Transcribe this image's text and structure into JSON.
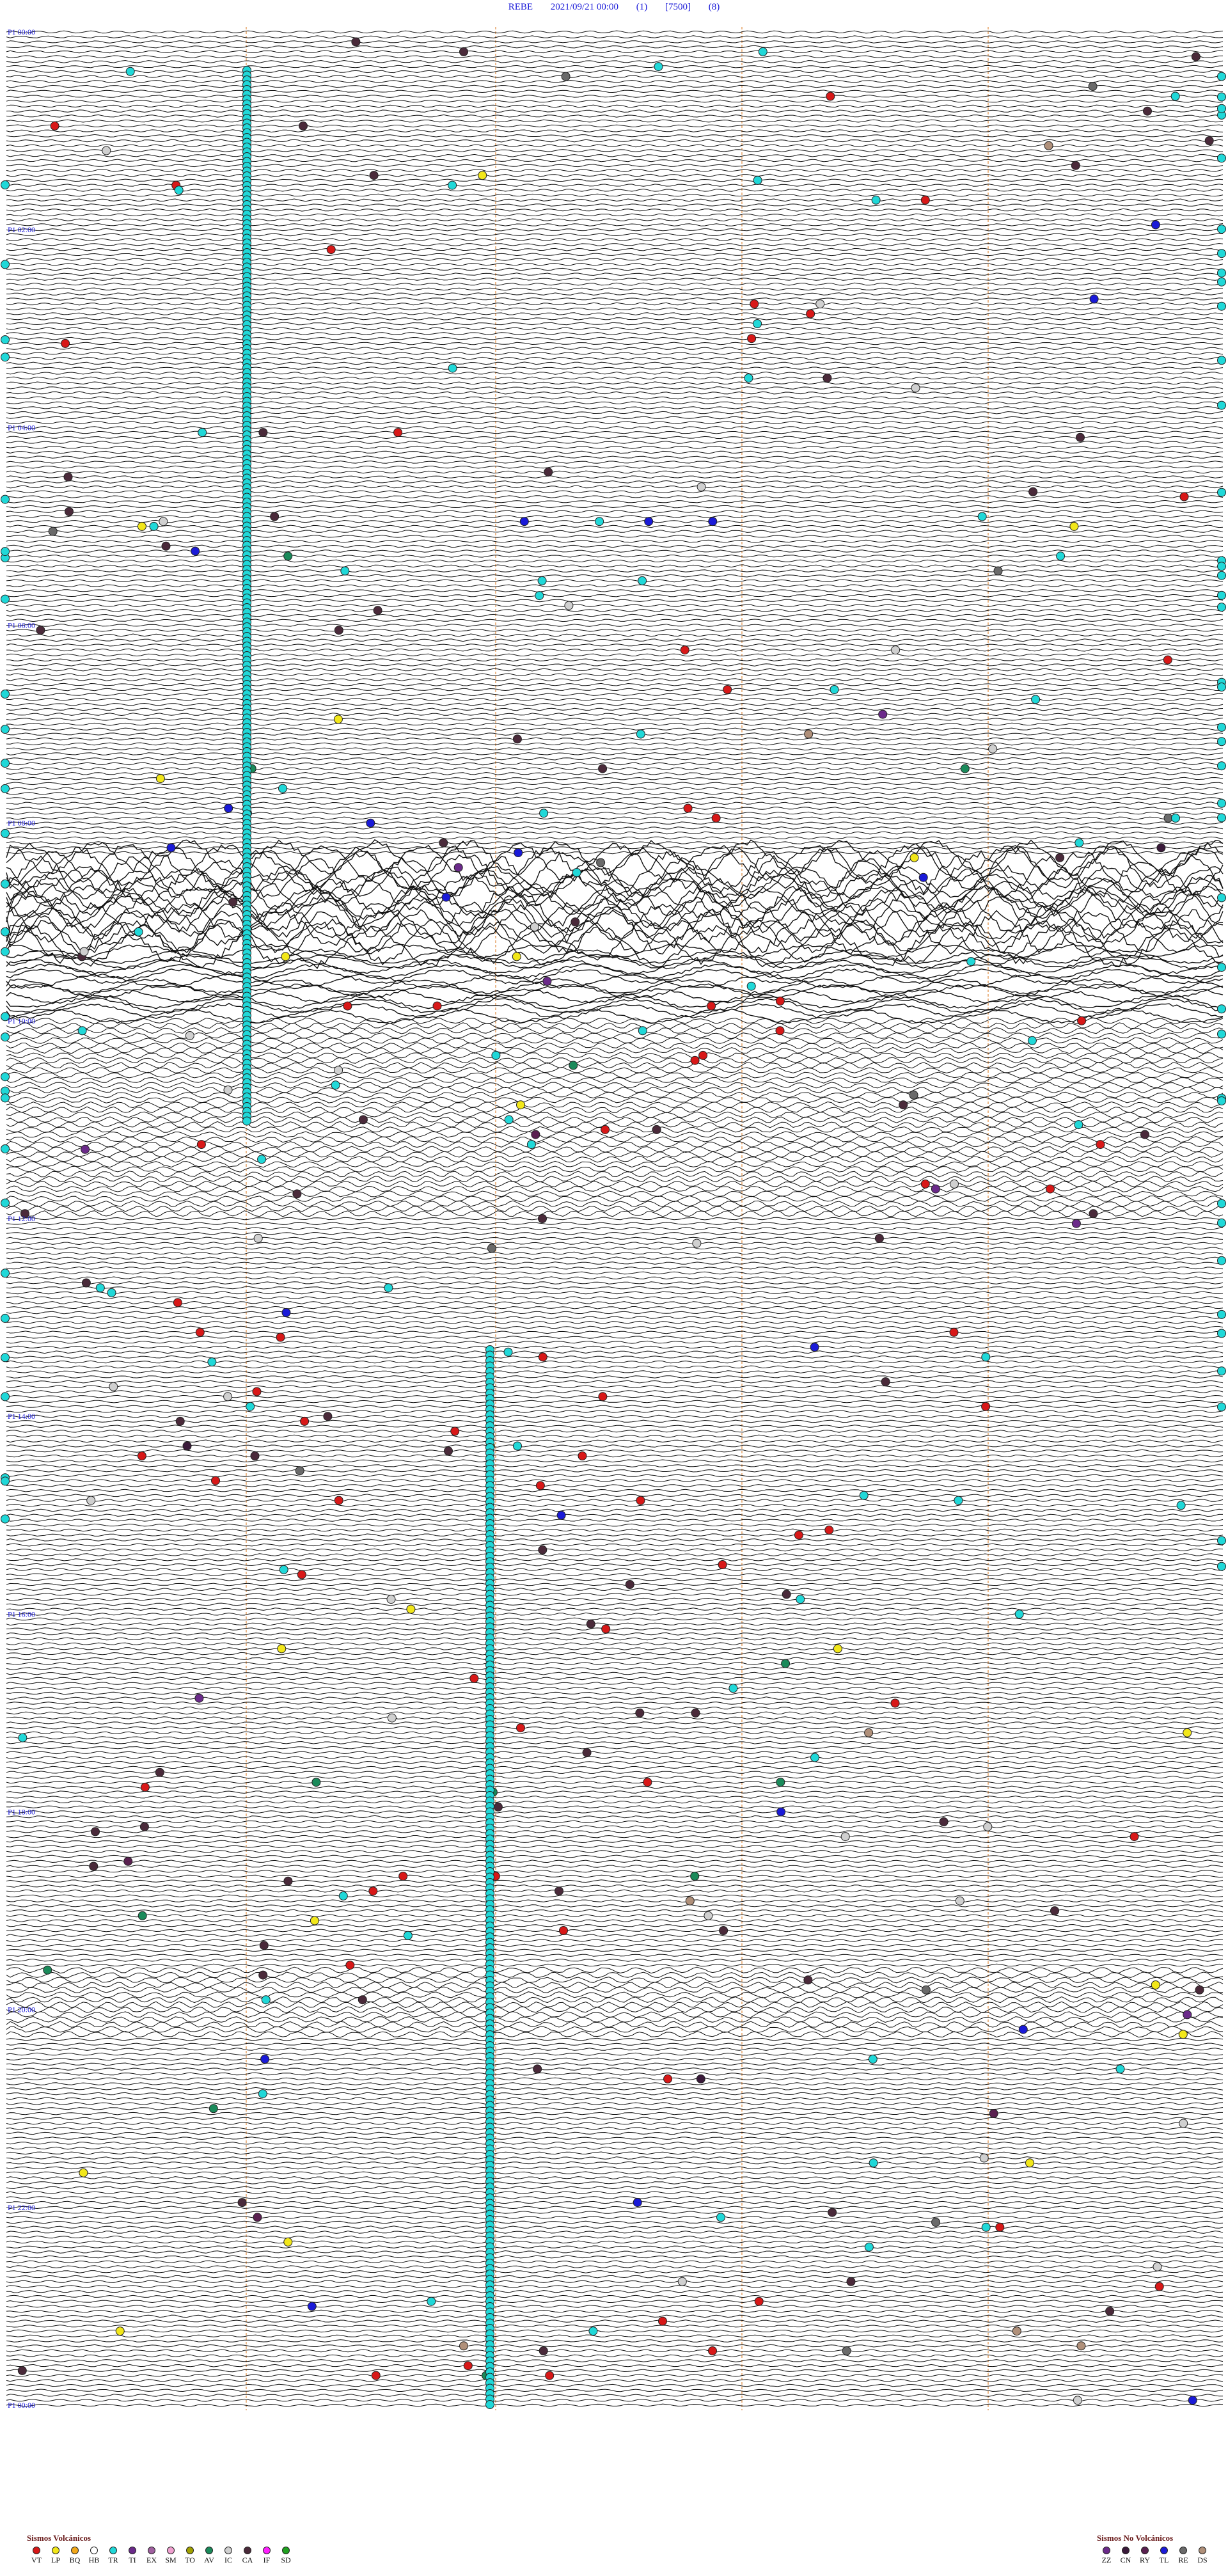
{
  "header": {
    "station": "REBE",
    "datetime": "2021/09/21 00:00",
    "component": "(1)",
    "scale": "[7500]",
    "filter": "(8)"
  },
  "chart_data": {
    "type": "seismogram",
    "hours": [
      "00:00",
      "02:00",
      "04:00",
      "06:00",
      "08:00",
      "10:00",
      "12:00",
      "14:00",
      "16:00",
      "18:00",
      "20:00",
      "22:00",
      "00:00"
    ],
    "major_label_prefix": "P1",
    "major_labels_visible": [
      "00:00",
      "02:00",
      "04:00",
      "06:00",
      "08:00",
      "10:00",
      "12:00",
      "14:00",
      "16:00",
      "18:00",
      "20:00",
      "22:00",
      "00:00"
    ],
    "lines_per_hour": 20,
    "total_hours": 24,
    "colors": {
      "trace": "#111111",
      "guide_lines": "#e08a3c",
      "hour_label": "#1a1ad8",
      "left_marker": "#cc1a1a"
    },
    "event_types": {
      "VT": "#d81818",
      "LP": "#f2e71a",
      "BQ": "#f2a81a",
      "HB": "#ffffff",
      "TR": "#20d8d8",
      "TI": "#6b2a8a",
      "EX": "#a060a0",
      "SM": "#f0a0d0",
      "TO": "#a0a000",
      "AV": "#1a8a5a",
      "IC": "#d0d0d0",
      "CA": "#4a2a3a",
      "IF": "#ff20ff",
      "SD": "#20a020",
      "ZZ": "#6b2a8a",
      "CN": "#3a1a3a",
      "RY": "#5a2050",
      "TL": "#1a1ad8",
      "RE": "#6a6a6a",
      "DS": "#b0907a"
    }
  },
  "legend_volcanic": {
    "title": "Sismos Volcánicos",
    "items": [
      {
        "code": "VT",
        "color": "#d81818"
      },
      {
        "code": "LP",
        "color": "#f2e71a"
      },
      {
        "code": "BQ",
        "color": "#f2a81a"
      },
      {
        "code": "HB",
        "color": "#ffffff"
      },
      {
        "code": "TR",
        "color": "#20d8d8"
      },
      {
        "code": "TI",
        "color": "#6b2a8a"
      },
      {
        "code": "EX",
        "color": "#a060a0"
      },
      {
        "code": "SM",
        "color": "#f0a0d0"
      },
      {
        "code": "TO",
        "color": "#a0a000"
      },
      {
        "code": "AV",
        "color": "#1a8a5a"
      },
      {
        "code": "IC",
        "color": "#d0d0d0"
      },
      {
        "code": "CA",
        "color": "#4a2a3a"
      },
      {
        "code": "IF",
        "color": "#ff20ff"
      },
      {
        "code": "SD",
        "color": "#20a020"
      }
    ]
  },
  "legend_nonvolcanic": {
    "title": "Sismos No Volcánicos",
    "items": [
      {
        "code": "ZZ",
        "color": "#6b2a8a"
      },
      {
        "code": "CN",
        "color": "#3a1a3a"
      },
      {
        "code": "RY",
        "color": "#5a2050"
      },
      {
        "code": "TL",
        "color": "#1a1ad8"
      },
      {
        "code": "RE",
        "color": "#6a6a6a"
      },
      {
        "code": "DS",
        "color": "#b0907a"
      }
    ]
  }
}
